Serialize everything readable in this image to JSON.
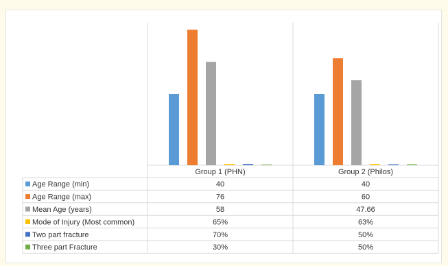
{
  "chart_data": {
    "type": "bar",
    "categories": [
      "Group 1 (PHN)",
      "Group 2 (Philos)"
    ],
    "series": [
      {
        "name": "Age Range (min)",
        "color": "#5b9bd5",
        "values": [
          40,
          40
        ],
        "labels": [
          "40",
          "40"
        ]
      },
      {
        "name": "Age Range (max)",
        "color": "#ed7d31",
        "values": [
          76,
          60
        ],
        "labels": [
          "76",
          "60"
        ]
      },
      {
        "name": "Mean Age (years)",
        "color": "#a5a5a5",
        "values": [
          58,
          47.66
        ],
        "labels": [
          "58",
          "47.66"
        ]
      },
      {
        "name": "Mode of Injury (Most common)",
        "color": "#ffc000",
        "values": [
          0.65,
          0.63
        ],
        "labels": [
          "65%",
          "63%"
        ]
      },
      {
        "name": "Two part fracture",
        "color": "#4472c4",
        "values": [
          0.7,
          0.5
        ],
        "labels": [
          "70%",
          "50%"
        ]
      },
      {
        "name": "Three part Fracture",
        "color": "#70ad47",
        "values": [
          0.3,
          0.5
        ],
        "labels": [
          "30%",
          "50%"
        ]
      }
    ],
    "ylim": [
      0,
      80
    ],
    "legend": "data-table",
    "grid": false
  }
}
